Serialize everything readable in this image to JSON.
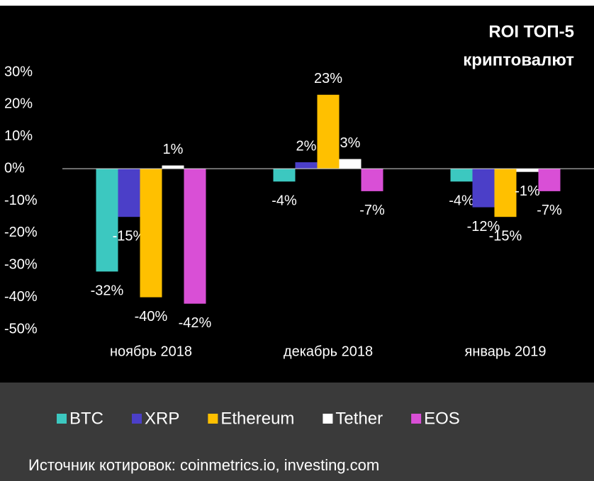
{
  "chart_data": {
    "type": "bar",
    "title": [
      "ROI ТОП-5",
      "криптовалют"
    ],
    "categories": [
      "ноябрь 2018",
      "декабрь 2018",
      "январь 2019"
    ],
    "series": [
      {
        "name": "BTC",
        "color": "#3cc8c0",
        "values": [
          -32,
          -4,
          -4
        ],
        "value_labels": [
          "-32%",
          "-4%",
          "-4%"
        ]
      },
      {
        "name": "XRP",
        "color": "#4b3fc8",
        "values": [
          -15,
          2,
          -12
        ],
        "value_labels": [
          "-15%",
          "2%",
          "-12%"
        ]
      },
      {
        "name": "Ethereum",
        "color": "#ffc000",
        "values": [
          -40,
          23,
          -15
        ],
        "value_labels": [
          "-40%",
          "23%",
          "-15%"
        ]
      },
      {
        "name": "Tether",
        "color": "#ffffff",
        "values": [
          1,
          3,
          -1
        ],
        "value_labels": [
          "1%",
          "3%",
          "-1%"
        ]
      },
      {
        "name": "EOS",
        "color": "#d94fd6",
        "values": [
          -42,
          -7,
          -7
        ],
        "value_labels": [
          "-42%",
          "-7%",
          "-7%"
        ]
      }
    ],
    "ylim": [
      -50,
      30
    ],
    "yticks": [
      {
        "value": -50,
        "label": "-50%"
      },
      {
        "value": -40,
        "label": "-40%"
      },
      {
        "value": -30,
        "label": "-30%"
      },
      {
        "value": -20,
        "label": "-20%"
      },
      {
        "value": -10,
        "label": "-10%"
      },
      {
        "value": 0,
        "label": "0%"
      },
      {
        "value": 10,
        "label": "10%"
      },
      {
        "value": 20,
        "label": "20%"
      },
      {
        "value": 30,
        "label": "30%"
      }
    ],
    "legend": "bottom",
    "source": "Источник котировок: coinmetrics.io, investing.com"
  }
}
